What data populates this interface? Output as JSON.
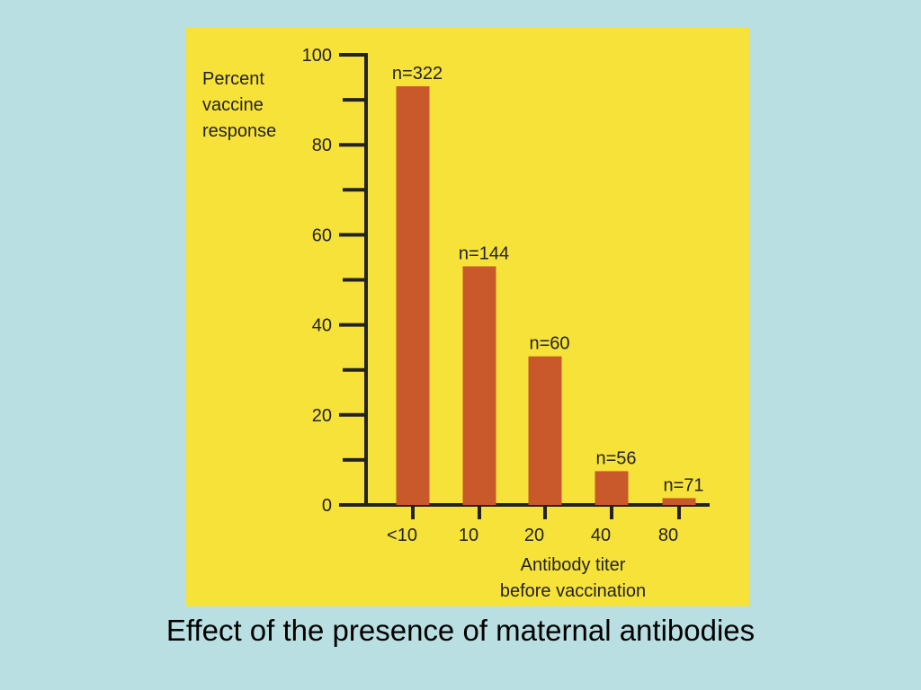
{
  "caption": "Effect of the presence of maternal antibodies",
  "colors": {
    "slide_background": "#b9dfe2",
    "figure_background": "#f7e23a",
    "bar_fill": "#c9582b",
    "axis": "#222222"
  },
  "chart_data": {
    "type": "bar",
    "ylabel_lines": [
      "Percent",
      "vaccine",
      "response"
    ],
    "xlabel_lines": [
      "Antibody titer",
      "before vaccination"
    ],
    "ylim": [
      0,
      100
    ],
    "y_ticks": [
      "0",
      "20",
      "40",
      "60",
      "80",
      "100"
    ],
    "grid": false,
    "categories": [
      "<10",
      "10",
      "20",
      "40",
      "80"
    ],
    "values": [
      93,
      53,
      33,
      7.5,
      1.5
    ],
    "data_labels": [
      "n=322",
      "n=144",
      "n=60",
      "n=56",
      "n=71"
    ]
  }
}
